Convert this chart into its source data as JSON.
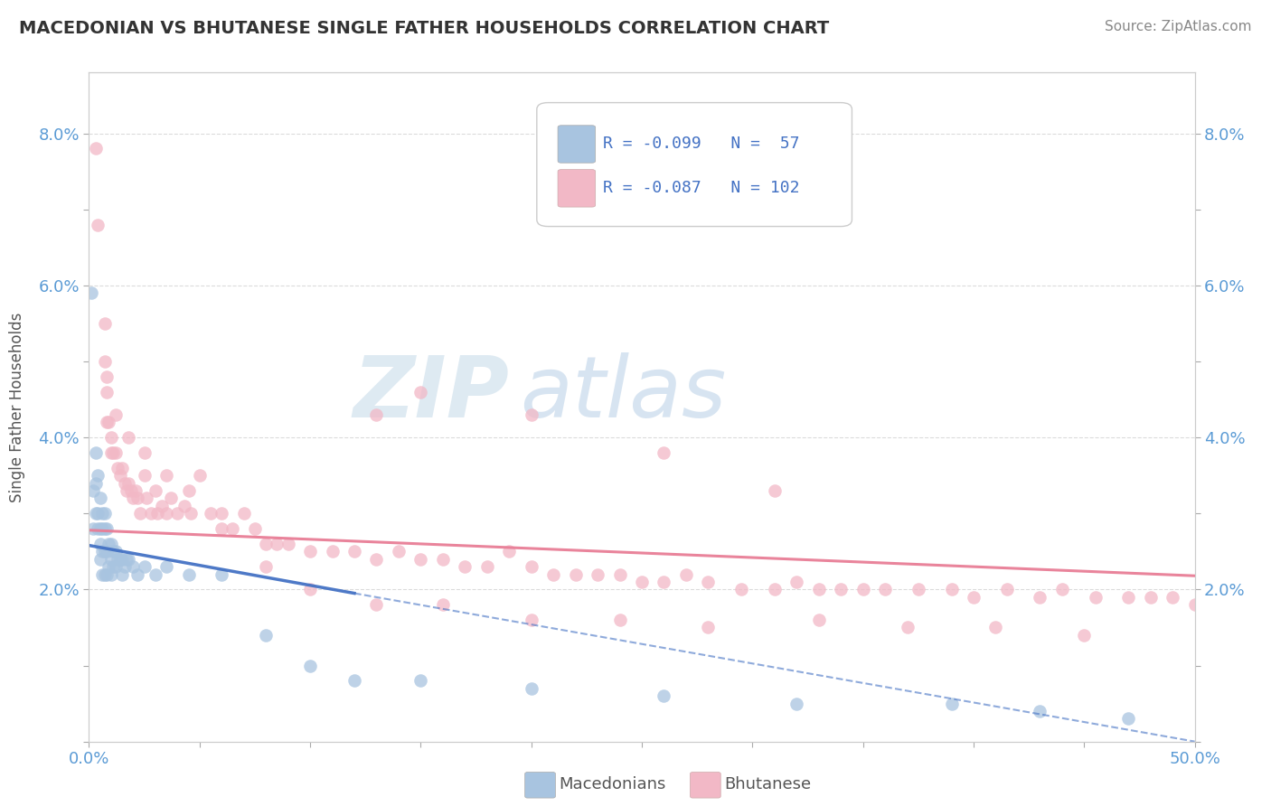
{
  "title": "MACEDONIAN VS BHUTANESE SINGLE FATHER HOUSEHOLDS CORRELATION CHART",
  "source": "Source: ZipAtlas.com",
  "ylabel": "Single Father Households",
  "xlim": [
    0.0,
    0.5
  ],
  "ylim": [
    0.0,
    0.088
  ],
  "macedonian_color": "#a8c4e0",
  "bhutanese_color": "#f2b8c6",
  "trend_mac_color": "#4472c4",
  "trend_bhu_color": "#e87d96",
  "background_color": "#ffffff",
  "axis_color": "#5b9bd5",
  "text_color_blue": "#4472c4",
  "watermark_zip": "ZIP",
  "watermark_atlas": "atlas",
  "macedonian_x": [
    0.001,
    0.002,
    0.002,
    0.003,
    0.003,
    0.003,
    0.004,
    0.004,
    0.004,
    0.005,
    0.005,
    0.005,
    0.005,
    0.006,
    0.006,
    0.006,
    0.006,
    0.007,
    0.007,
    0.007,
    0.007,
    0.008,
    0.008,
    0.008,
    0.009,
    0.009,
    0.01,
    0.01,
    0.01,
    0.011,
    0.011,
    0.012,
    0.012,
    0.013,
    0.014,
    0.015,
    0.015,
    0.016,
    0.017,
    0.018,
    0.02,
    0.022,
    0.025,
    0.03,
    0.035,
    0.045,
    0.06,
    0.08,
    0.1,
    0.12,
    0.15,
    0.2,
    0.26,
    0.32,
    0.39,
    0.43,
    0.47
  ],
  "macedonian_y": [
    0.059,
    0.033,
    0.028,
    0.038,
    0.034,
    0.03,
    0.035,
    0.03,
    0.028,
    0.032,
    0.028,
    0.026,
    0.024,
    0.03,
    0.028,
    0.025,
    0.022,
    0.03,
    0.028,
    0.025,
    0.022,
    0.028,
    0.025,
    0.022,
    0.026,
    0.023,
    0.026,
    0.024,
    0.022,
    0.025,
    0.023,
    0.025,
    0.023,
    0.024,
    0.024,
    0.024,
    0.022,
    0.023,
    0.024,
    0.024,
    0.023,
    0.022,
    0.023,
    0.022,
    0.023,
    0.022,
    0.022,
    0.014,
    0.01,
    0.008,
    0.008,
    0.007,
    0.006,
    0.005,
    0.005,
    0.004,
    0.003
  ],
  "bhutanese_x": [
    0.003,
    0.004,
    0.007,
    0.007,
    0.008,
    0.008,
    0.009,
    0.01,
    0.01,
    0.011,
    0.012,
    0.013,
    0.014,
    0.015,
    0.016,
    0.017,
    0.018,
    0.019,
    0.02,
    0.021,
    0.022,
    0.023,
    0.025,
    0.026,
    0.028,
    0.03,
    0.031,
    0.033,
    0.035,
    0.037,
    0.04,
    0.043,
    0.046,
    0.05,
    0.055,
    0.06,
    0.065,
    0.07,
    0.075,
    0.08,
    0.085,
    0.09,
    0.1,
    0.11,
    0.12,
    0.13,
    0.14,
    0.15,
    0.16,
    0.17,
    0.18,
    0.19,
    0.2,
    0.21,
    0.22,
    0.23,
    0.24,
    0.25,
    0.26,
    0.27,
    0.28,
    0.295,
    0.31,
    0.32,
    0.33,
    0.34,
    0.35,
    0.36,
    0.375,
    0.39,
    0.4,
    0.415,
    0.43,
    0.44,
    0.455,
    0.47,
    0.48,
    0.49,
    0.5,
    0.008,
    0.012,
    0.018,
    0.025,
    0.035,
    0.045,
    0.06,
    0.08,
    0.1,
    0.13,
    0.16,
    0.2,
    0.24,
    0.28,
    0.33,
    0.37,
    0.41,
    0.45,
    0.13,
    0.15,
    0.2,
    0.26,
    0.31
  ],
  "bhutanese_y": [
    0.078,
    0.068,
    0.055,
    0.05,
    0.048,
    0.042,
    0.042,
    0.04,
    0.038,
    0.038,
    0.038,
    0.036,
    0.035,
    0.036,
    0.034,
    0.033,
    0.034,
    0.033,
    0.032,
    0.033,
    0.032,
    0.03,
    0.035,
    0.032,
    0.03,
    0.033,
    0.03,
    0.031,
    0.03,
    0.032,
    0.03,
    0.031,
    0.03,
    0.035,
    0.03,
    0.03,
    0.028,
    0.03,
    0.028,
    0.026,
    0.026,
    0.026,
    0.025,
    0.025,
    0.025,
    0.024,
    0.025,
    0.024,
    0.024,
    0.023,
    0.023,
    0.025,
    0.023,
    0.022,
    0.022,
    0.022,
    0.022,
    0.021,
    0.021,
    0.022,
    0.021,
    0.02,
    0.02,
    0.021,
    0.02,
    0.02,
    0.02,
    0.02,
    0.02,
    0.02,
    0.019,
    0.02,
    0.019,
    0.02,
    0.019,
    0.019,
    0.019,
    0.019,
    0.018,
    0.046,
    0.043,
    0.04,
    0.038,
    0.035,
    0.033,
    0.028,
    0.023,
    0.02,
    0.018,
    0.018,
    0.016,
    0.016,
    0.015,
    0.016,
    0.015,
    0.015,
    0.014,
    0.043,
    0.046,
    0.043,
    0.038,
    0.033
  ],
  "trend_bhu_start_x": 0.0,
  "trend_bhu_start_y": 0.0278,
  "trend_bhu_end_x": 0.5,
  "trend_bhu_end_y": 0.0218,
  "trend_mac_solid_start_x": 0.0,
  "trend_mac_solid_start_y": 0.0258,
  "trend_mac_solid_end_x": 0.12,
  "trend_mac_solid_end_y": 0.0195,
  "trend_mac_dash_start_x": 0.12,
  "trend_mac_dash_start_y": 0.0195,
  "trend_mac_dash_end_x": 0.5,
  "trend_mac_dash_end_y": 0.0
}
